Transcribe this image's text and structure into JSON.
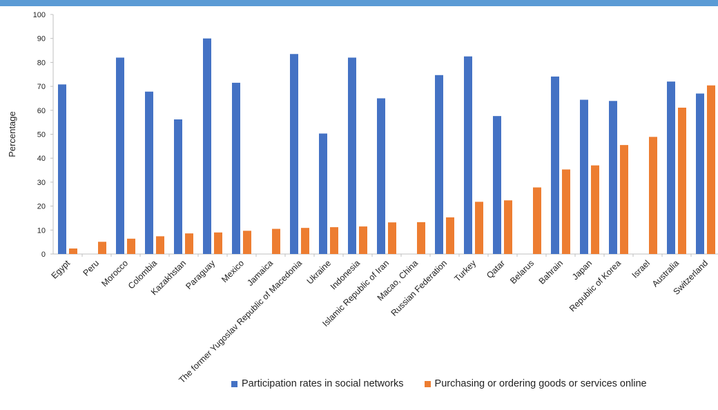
{
  "colors": {
    "header_band": "#5B9BD5",
    "axis": "#BFBFBF"
  },
  "chart_data": {
    "type": "bar",
    "title": "",
    "xlabel": "",
    "ylabel": "Percentage",
    "ylim": [
      0,
      100
    ],
    "yticks": [
      0,
      10,
      20,
      30,
      40,
      50,
      60,
      70,
      80,
      90,
      100
    ],
    "grid": false,
    "legend_position": "bottom-right",
    "categories": [
      "Egypt",
      "Peru",
      "Morocco",
      "Colombia",
      "Kazakhstan",
      "Paraguay",
      "Mexico",
      "Jamaica",
      "The former Yugoslav Republic of Macedonia",
      "Ukraine",
      "Indonesia",
      "Islamic Republic of Iran",
      "Macao, China",
      "Russian Federation",
      "Turkey",
      "Qatar",
      "Belarus",
      "Bahrain",
      "Japan",
      "Republic of Korea",
      "Israel",
      "Australia",
      "Switzerland"
    ],
    "series": [
      {
        "name": "Participation rates in social networks",
        "color": "#4472C4",
        "values": [
          70.8,
          null,
          82.0,
          67.8,
          56.2,
          90.0,
          71.5,
          null,
          83.5,
          50.3,
          82.0,
          65.0,
          null,
          74.7,
          82.5,
          57.6,
          null,
          74.1,
          64.4,
          63.9,
          null,
          72.0,
          67.0
        ]
      },
      {
        "name": "Purchasing or ordering goods or services online",
        "color": "#ED7D31",
        "values": [
          2.3,
          5.1,
          6.4,
          7.4,
          8.6,
          9.0,
          9.7,
          10.5,
          10.9,
          11.2,
          11.5,
          13.2,
          13.3,
          15.3,
          21.8,
          22.4,
          27.8,
          35.3,
          37.0,
          45.5,
          48.9,
          61.1,
          70.4
        ]
      }
    ]
  }
}
